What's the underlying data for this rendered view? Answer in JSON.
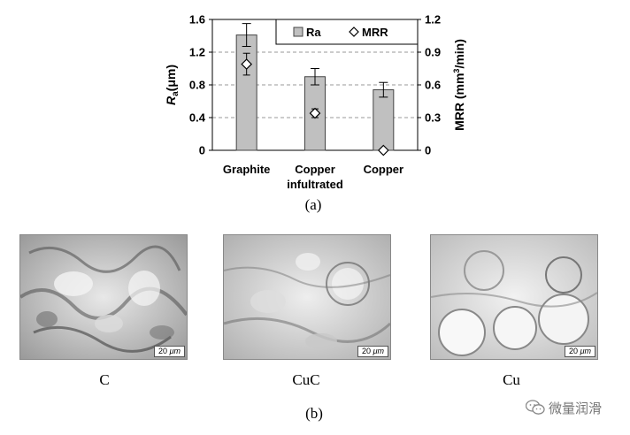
{
  "chart_data": {
    "type": "bar",
    "categories": [
      [
        "Graphite"
      ],
      [
        "Copper",
        "infultrated"
      ],
      [
        "Copper"
      ]
    ],
    "series": [
      {
        "name": "Ra",
        "axis": "left",
        "values": [
          1.41,
          0.9,
          0.74
        ],
        "error": [
          0.14,
          0.1,
          0.09
        ],
        "color": "#c0c0c0"
      },
      {
        "name": "MRR",
        "axis": "right",
        "values": [
          0.79,
          0.34,
          0.0
        ],
        "error": [
          0.1,
          0.04,
          0
        ],
        "marker": "diamond"
      }
    ],
    "ylabel_left_main": "R",
    "ylabel_left_sub": "a",
    "ylabel_left_unit": "(μm)",
    "ylabel_right": "MRR (mm",
    "ylabel_right_sup": "3",
    "ylabel_right_tail": "/min)",
    "ylim_left": [
      0,
      1.6
    ],
    "ylim_right": [
      0,
      1.2
    ],
    "yticks_left": [
      "0",
      "0.4",
      "0.8",
      "1.2",
      "1.6"
    ],
    "yticks_right": [
      "0",
      "0.3",
      "0.6",
      "0.9",
      "1.2"
    ],
    "grid": "horizontal dashed",
    "legend_position": "top-right",
    "caption": "(a)"
  },
  "figure_b": {
    "panels": [
      {
        "label": "C",
        "scale": "20",
        "unit": "μm"
      },
      {
        "label": "CuC",
        "scale": "20",
        "unit": "μm"
      },
      {
        "label": "Cu",
        "scale": "20",
        "unit": "μm"
      }
    ],
    "caption": "(b)"
  },
  "watermark": {
    "text": "微量润滑",
    "icon": "wechat-icon"
  }
}
